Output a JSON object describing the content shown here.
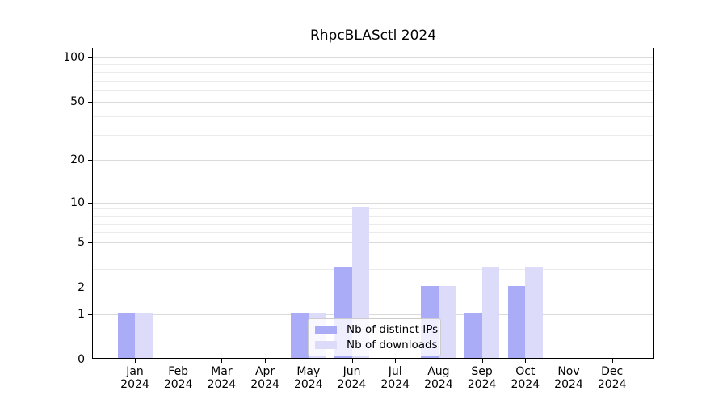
{
  "title": "RhpcBLASctl 2024",
  "chart_data": {
    "type": "bar",
    "title": "RhpcBLASctl 2024",
    "xlabel": "",
    "ylabel": "",
    "y_scale": "log10(1+y)",
    "ylim": [
      0,
      100
    ],
    "yticks": [
      0,
      1,
      2,
      5,
      10,
      20,
      50,
      100
    ],
    "grid": true,
    "year_label": "2024",
    "categories": [
      "Jan",
      "Feb",
      "Mar",
      "Apr",
      "May",
      "Jun",
      "Jul",
      "Aug",
      "Sep",
      "Oct",
      "Nov",
      "Dec"
    ],
    "series": [
      {
        "name": "Nb of distinct IPs",
        "color": "#abacf7",
        "values": [
          1,
          0,
          0,
          0,
          1,
          3,
          0,
          2,
          1,
          2,
          0,
          0
        ]
      },
      {
        "name": "Nb of downloads",
        "color": "#dcdcfa",
        "values": [
          1,
          0,
          0,
          0,
          1,
          9,
          0,
          2,
          3,
          3,
          0,
          0
        ]
      }
    ],
    "legend_position": "bottom-center"
  },
  "colors": {
    "axis": "#000000",
    "grid_minor": "#ebebeb",
    "grid_major": "#dadada",
    "legend_border": "#cccccc"
  }
}
